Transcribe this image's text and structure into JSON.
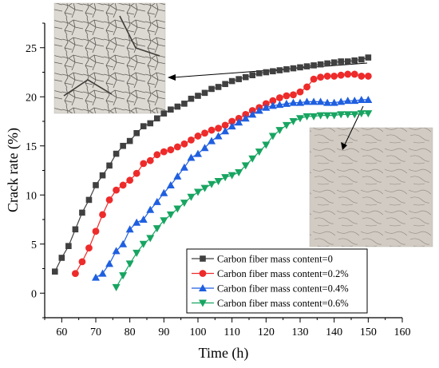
{
  "chart_data": {
    "type": "line",
    "title": "",
    "xlabel": "Time (h)",
    "ylabel": "Crack rate (%)",
    "xlim": [
      55,
      160
    ],
    "ylim": [
      -2.5,
      27.5
    ],
    "x_ticks": [
      60,
      70,
      80,
      90,
      100,
      110,
      120,
      130,
      140,
      150,
      160
    ],
    "y_ticks": [
      0,
      5,
      10,
      15,
      20,
      25
    ],
    "grid": false,
    "legend_position": "bottom-right",
    "series": [
      {
        "name": "Carbon fiber mass content=0",
        "color": "#404040",
        "marker": "square",
        "x": [
          58,
          60,
          62,
          64,
          66,
          68,
          70,
          72,
          74,
          76,
          78,
          80,
          82,
          84,
          86,
          88,
          90,
          92,
          94,
          96,
          98,
          100,
          102,
          104,
          106,
          108,
          110,
          112,
          114,
          116,
          118,
          120,
          122,
          124,
          126,
          128,
          130,
          132,
          134,
          136,
          138,
          140,
          142,
          144,
          146,
          148,
          150
        ],
        "y": [
          2.2,
          3.6,
          4.8,
          6.5,
          8.2,
          9.5,
          11.0,
          12.0,
          13.0,
          14.2,
          15.0,
          15.5,
          16.3,
          17.0,
          17.3,
          17.8,
          18.3,
          18.7,
          19.0,
          19.3,
          19.8,
          20.1,
          20.4,
          20.8,
          21.0,
          21.3,
          21.6,
          21.8,
          22.0,
          22.2,
          22.4,
          22.5,
          22.6,
          22.7,
          22.8,
          22.9,
          23.0,
          23.1,
          23.2,
          23.3,
          23.4,
          23.5,
          23.6,
          23.6,
          23.7,
          23.8,
          24.0
        ]
      },
      {
        "name": "Carbon fiber mass content=0.2%",
        "color": "#ee2b2b",
        "marker": "circle",
        "x": [
          64,
          66,
          68,
          70,
          72,
          74,
          76,
          78,
          80,
          82,
          84,
          86,
          88,
          90,
          92,
          94,
          96,
          98,
          100,
          102,
          104,
          106,
          108,
          110,
          112,
          114,
          116,
          118,
          120,
          122,
          124,
          126,
          128,
          130,
          132,
          134,
          136,
          138,
          140,
          142,
          144,
          146,
          148,
          150
        ],
        "y": [
          2.0,
          3.2,
          4.6,
          6.3,
          8.0,
          9.5,
          10.5,
          11.0,
          11.5,
          12.2,
          13.2,
          13.5,
          14.1,
          14.4,
          14.6,
          14.9,
          15.2,
          15.6,
          16.0,
          16.3,
          16.6,
          16.8,
          17.1,
          17.5,
          17.8,
          18.2,
          18.6,
          18.9,
          19.3,
          19.6,
          19.9,
          20.1,
          20.2,
          20.5,
          21.0,
          21.8,
          22.0,
          22.1,
          22.1,
          22.2,
          22.3,
          22.3,
          22.1,
          22.1
        ]
      },
      {
        "name": "Carbon fiber mass content=0.4%",
        "color": "#1f5fe0",
        "marker": "triangle-up",
        "x": [
          70,
          72,
          74,
          76,
          78,
          80,
          82,
          84,
          86,
          88,
          90,
          92,
          94,
          96,
          98,
          100,
          102,
          104,
          106,
          108,
          110,
          112,
          114,
          116,
          118,
          120,
          122,
          124,
          126,
          128,
          130,
          132,
          134,
          136,
          138,
          140,
          142,
          144,
          146,
          148,
          150
        ],
        "y": [
          1.6,
          2.0,
          3.0,
          4.3,
          5.0,
          6.5,
          7.2,
          7.5,
          8.5,
          9.3,
          10.2,
          11.0,
          11.9,
          12.8,
          13.8,
          14.2,
          14.8,
          15.5,
          16.0,
          16.5,
          17.0,
          17.4,
          17.8,
          18.2,
          18.6,
          18.9,
          19.1,
          19.2,
          19.3,
          19.4,
          19.4,
          19.5,
          19.5,
          19.5,
          19.4,
          19.4,
          19.5,
          19.6,
          19.6,
          19.7,
          19.7
        ]
      },
      {
        "name": "Carbon fiber mass content=0.6%",
        "color": "#17a561",
        "marker": "triangle-down",
        "x": [
          76,
          78,
          80,
          82,
          84,
          86,
          88,
          90,
          92,
          94,
          96,
          98,
          100,
          102,
          104,
          106,
          108,
          110,
          112,
          114,
          116,
          118,
          120,
          122,
          124,
          126,
          128,
          130,
          132,
          134,
          136,
          138,
          140,
          142,
          144,
          146,
          148,
          150
        ],
        "y": [
          0.6,
          1.8,
          3.0,
          4.1,
          5.0,
          5.6,
          6.6,
          7.4,
          8.0,
          8.6,
          9.2,
          9.8,
          10.3,
          10.7,
          11.1,
          11.4,
          11.8,
          12.0,
          12.3,
          13.0,
          13.7,
          14.4,
          15.1,
          16.0,
          16.6,
          17.1,
          17.5,
          17.8,
          18.0,
          18.0,
          18.1,
          18.1,
          18.1,
          18.2,
          18.2,
          18.2,
          18.3,
          18.3
        ]
      }
    ]
  }
}
